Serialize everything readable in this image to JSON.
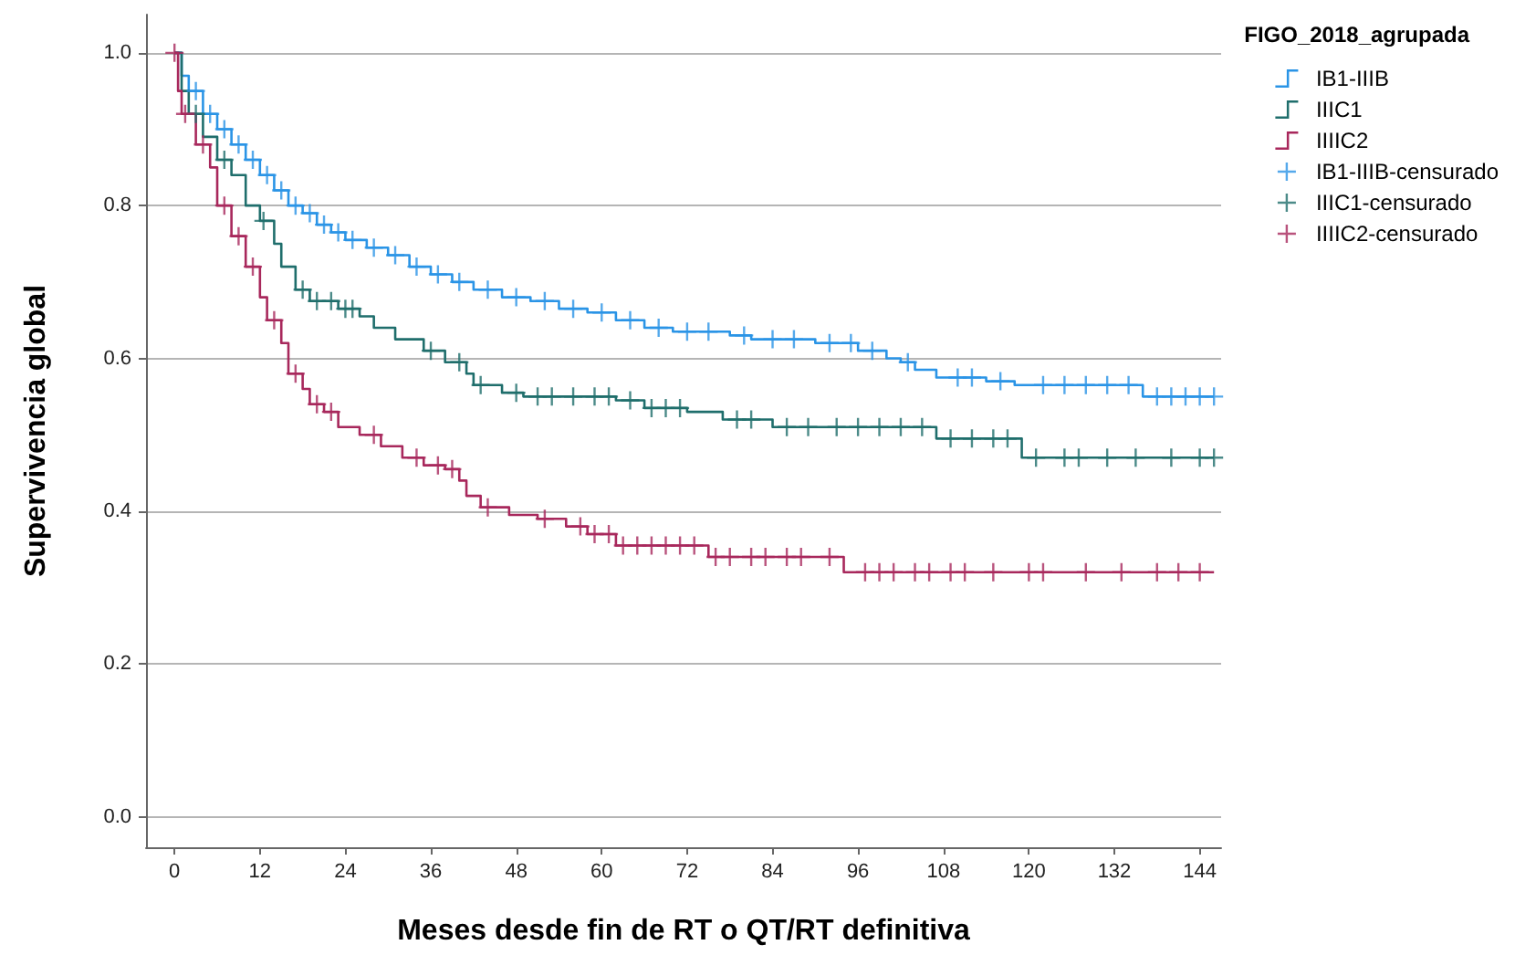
{
  "chart_data": {
    "type": "step",
    "xlabel": "Meses desde fin de RT o QT/RT definitiva",
    "ylabel": "Supervivencia global",
    "legend_title": "FIGO_2018_agrupada",
    "legend": "top right",
    "grid": "y",
    "line_style": "solid",
    "xlim": [
      -4,
      147
    ],
    "xticks": [
      0,
      12,
      24,
      36,
      48,
      60,
      72,
      84,
      96,
      108,
      120,
      132,
      144
    ],
    "ylim": [
      -0.04,
      1.05
    ],
    "yticks": [
      {
        "value": 0,
        "label": "0.0"
      },
      {
        "value": 0.2,
        "label": "0.2"
      },
      {
        "value": 0.4,
        "label": "0.4"
      },
      {
        "value": 0.6,
        "label": "0.6"
      },
      {
        "value": 0.8,
        "label": "0.8"
      },
      {
        "value": 1,
        "label": "1.0"
      }
    ],
    "series": [
      {
        "name": "IB1-IIIB",
        "color": "#2a94e6",
        "x": [
          0,
          1,
          2,
          4,
          6,
          8,
          10,
          12,
          14,
          16,
          18,
          20,
          22,
          24,
          27,
          30,
          33,
          36,
          39,
          42,
          46,
          50,
          54,
          58,
          62,
          66,
          70,
          78,
          81,
          90,
          96,
          100,
          102,
          104,
          107,
          114,
          118,
          136,
          146
        ],
        "values": [
          1.0,
          0.97,
          0.95,
          0.92,
          0.9,
          0.88,
          0.86,
          0.84,
          0.82,
          0.8,
          0.79,
          0.775,
          0.765,
          0.755,
          0.745,
          0.735,
          0.72,
          0.71,
          0.7,
          0.69,
          0.68,
          0.675,
          0.665,
          0.66,
          0.65,
          0.64,
          0.635,
          0.63,
          0.625,
          0.62,
          0.61,
          0.6,
          0.595,
          0.585,
          0.575,
          0.57,
          0.565,
          0.55,
          0.55
        ]
      },
      {
        "name": "IIIC1",
        "color": "#1f6e6c",
        "x": [
          0,
          1,
          2,
          4,
          6,
          8,
          10,
          12,
          14,
          15,
          17,
          19,
          23,
          26,
          28,
          31,
          35,
          38,
          41,
          42,
          46,
          49,
          62,
          66,
          72,
          77,
          84,
          107,
          119,
          146
        ],
        "values": [
          1.0,
          0.95,
          0.92,
          0.89,
          0.86,
          0.84,
          0.8,
          0.78,
          0.75,
          0.72,
          0.69,
          0.675,
          0.665,
          0.655,
          0.64,
          0.625,
          0.61,
          0.595,
          0.58,
          0.565,
          0.555,
          0.55,
          0.545,
          0.535,
          0.53,
          0.52,
          0.51,
          0.495,
          0.47,
          0.47
        ]
      },
      {
        "name": "IIIIC2",
        "color": "#a8285c",
        "x": [
          0,
          0.5,
          1,
          3,
          5,
          6,
          8,
          10,
          12,
          13,
          15,
          16,
          18,
          19,
          21,
          23,
          26,
          29,
          32,
          35,
          38,
          40,
          41,
          43,
          47,
          51,
          55,
          58,
          62,
          75,
          94,
          146
        ],
        "values": [
          1.0,
          0.95,
          0.92,
          0.88,
          0.85,
          0.8,
          0.76,
          0.72,
          0.68,
          0.65,
          0.62,
          0.58,
          0.56,
          0.54,
          0.53,
          0.51,
          0.5,
          0.485,
          0.47,
          0.46,
          0.455,
          0.44,
          0.42,
          0.405,
          0.395,
          0.39,
          0.38,
          0.37,
          0.355,
          0.34,
          0.32,
          0.32
        ]
      },
      {
        "name": "IB1-IIIB-censurado",
        "type": "scatter",
        "marker": "cross",
        "color": "#2a94e6",
        "x": [
          3,
          5,
          7,
          9,
          11,
          13,
          15,
          17,
          19,
          21,
          23,
          25,
          28,
          31,
          34,
          37,
          40,
          44,
          48,
          52,
          56,
          60,
          64,
          68,
          72,
          75,
          80,
          84,
          87,
          92,
          95,
          98,
          103,
          110,
          112,
          116,
          122,
          125,
          128,
          131,
          134,
          138,
          140,
          142,
          144,
          146
        ],
        "values": [
          0.95,
          0.92,
          0.9,
          0.88,
          0.86,
          0.84,
          0.82,
          0.8,
          0.79,
          0.775,
          0.765,
          0.755,
          0.745,
          0.735,
          0.72,
          0.71,
          0.7,
          0.69,
          0.68,
          0.675,
          0.665,
          0.66,
          0.65,
          0.64,
          0.635,
          0.635,
          0.63,
          0.625,
          0.625,
          0.62,
          0.62,
          0.61,
          0.595,
          0.575,
          0.575,
          0.57,
          0.565,
          0.565,
          0.565,
          0.565,
          0.565,
          0.55,
          0.55,
          0.55,
          0.55,
          0.55
        ]
      },
      {
        "name": "IIIC1-censurado",
        "type": "scatter",
        "marker": "cross",
        "color": "#1f6e6c",
        "x": [
          3,
          7,
          12.5,
          18,
          20,
          22,
          24,
          25,
          36,
          40,
          43,
          48,
          51,
          53,
          56,
          59,
          61,
          64,
          67,
          69,
          71,
          79,
          81,
          86,
          89,
          93,
          96,
          99,
          102,
          105,
          109,
          112,
          115,
          117,
          121,
          125,
          127,
          131,
          135,
          140,
          144,
          146
        ],
        "values": [
          0.92,
          0.86,
          0.78,
          0.69,
          0.675,
          0.675,
          0.665,
          0.665,
          0.61,
          0.595,
          0.565,
          0.555,
          0.55,
          0.55,
          0.55,
          0.55,
          0.55,
          0.545,
          0.535,
          0.535,
          0.535,
          0.52,
          0.52,
          0.51,
          0.51,
          0.51,
          0.51,
          0.51,
          0.51,
          0.51,
          0.495,
          0.495,
          0.495,
          0.495,
          0.47,
          0.47,
          0.47,
          0.47,
          0.47,
          0.47,
          0.47,
          0.47
        ]
      },
      {
        "name": "IIIIC2-censurado",
        "type": "scatter",
        "marker": "cross",
        "color": "#a8285c",
        "x": [
          0,
          1.5,
          4,
          7,
          9,
          11,
          14,
          17,
          20,
          22,
          28,
          34,
          37,
          39,
          44,
          52,
          57,
          59,
          61,
          63,
          65,
          67,
          69,
          71,
          73,
          76,
          78,
          81,
          83,
          86,
          88,
          92,
          97,
          99,
          101,
          104,
          106,
          109,
          111,
          115,
          120,
          122,
          128,
          133,
          138,
          141,
          144
        ],
        "values": [
          1.0,
          0.92,
          0.88,
          0.8,
          0.76,
          0.72,
          0.65,
          0.58,
          0.54,
          0.53,
          0.5,
          0.47,
          0.46,
          0.455,
          0.405,
          0.39,
          0.38,
          0.37,
          0.37,
          0.355,
          0.355,
          0.355,
          0.355,
          0.355,
          0.355,
          0.34,
          0.34,
          0.34,
          0.34,
          0.34,
          0.34,
          0.34,
          0.32,
          0.32,
          0.32,
          0.32,
          0.32,
          0.32,
          0.32,
          0.32,
          0.32,
          0.32,
          0.32,
          0.32,
          0.32,
          0.32,
          0.32
        ]
      }
    ]
  }
}
